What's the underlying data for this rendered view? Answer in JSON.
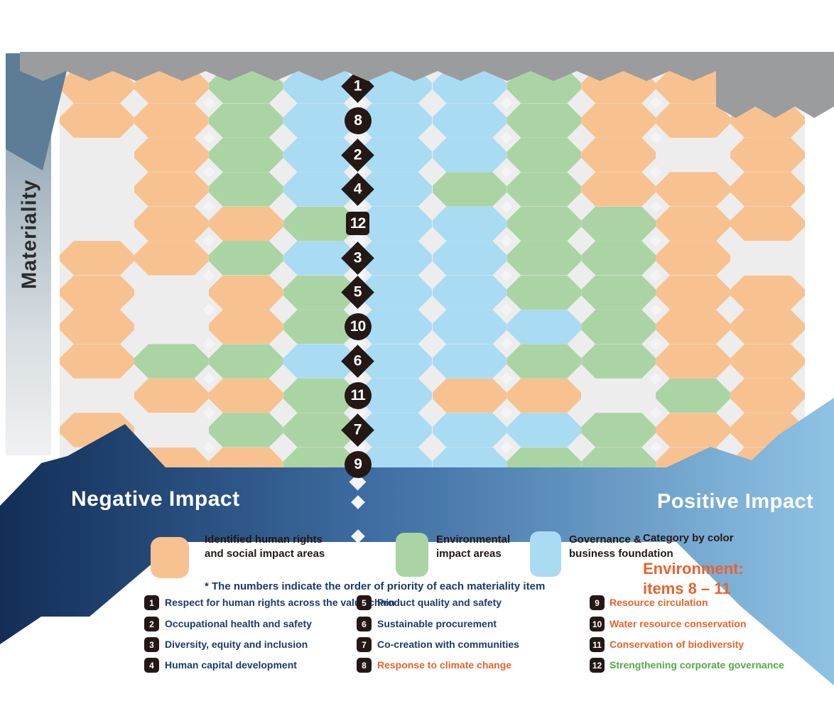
{
  "materiality": {
    "label": "Materiality"
  },
  "impact_axis": {
    "negative": "Negative Impact",
    "positive": "Positive Impact"
  },
  "colors": {
    "header_gray": "#9B9C9E",
    "cell_peach": "#F7C28F",
    "cell_green": "#ABD4A4",
    "cell_blue": "#A9DBF2",
    "cell_empty": "#EDEDEE",
    "marker_black": "#231815",
    "navy": "#1B3A6B",
    "orange": "#E8632C",
    "green_text": "#53A946",
    "band_dark": "#122E57",
    "band_light": "#8FC3E4",
    "pennant": "#5C7D95"
  },
  "grid": {
    "cols": 10,
    "rows": 12,
    "cell_colors": {
      "P": "#F7C28F",
      "G": "#ABD4A4",
      "B": "#A9DBF2",
      "X": "#EDEDEE"
    },
    "rows_pattern": [
      "PPGBBBGPPX",
      "PPGBBBGPPP",
      "XPGBBBGPXP",
      "XPGBBGGPPP",
      "XPPGBBGGPP",
      "PPGBBBGGPX",
      "PXPGBBGGPP",
      "PXPGBBBGPP",
      "PGGBBBGGPP",
      "XPPGBPPXGP",
      "PXGGBBBGPP",
      "XPPGBBGGPP"
    ]
  },
  "axis_markers": [
    {
      "label": "1",
      "shape": "diamond"
    },
    {
      "label": "8",
      "shape": "circle"
    },
    {
      "label": "2",
      "shape": "diamond"
    },
    {
      "label": "4",
      "shape": "diamond"
    },
    {
      "label": "12",
      "shape": "square"
    },
    {
      "label": "3",
      "shape": "diamond"
    },
    {
      "label": "5",
      "shape": "diamond"
    },
    {
      "label": "10",
      "shape": "circle"
    },
    {
      "label": "6",
      "shape": "diamond"
    },
    {
      "label": "11",
      "shape": "circle"
    },
    {
      "label": "7",
      "shape": "diamond"
    },
    {
      "label": "9",
      "shape": "circle"
    }
  ],
  "legend": {
    "items": [
      {
        "swatch": "#F7C28F",
        "line1": "Identified human rights",
        "line2": "and social impact areas"
      },
      {
        "swatch": "#ABD4A4",
        "line1": "Environmental",
        "line2": "impact areas"
      },
      {
        "swatch": "#A9DBF2",
        "line1": "Governance &",
        "line2": "business foundation"
      }
    ],
    "note": "* The numbers indicate the order of priority of each materiality item",
    "side_caption": "Category by color",
    "side_highlight_line1": "Environment:",
    "side_highlight_line2": "items 8 – 11"
  },
  "list": {
    "columns": [
      {
        "items": [
          {
            "n": "1",
            "label": "Respect for human rights across the value chain",
            "color": "#1B3A6B"
          },
          {
            "n": "2",
            "label": "Occupational health and safety",
            "color": "#1B3A6B"
          },
          {
            "n": "3",
            "label": "Diversity, equity and inclusion",
            "color": "#1B3A6B"
          },
          {
            "n": "4",
            "label": "Human capital development",
            "color": "#1B3A6B"
          }
        ]
      },
      {
        "items": [
          {
            "n": "5",
            "label": "Product quality and safety",
            "color": "#1B3A6B"
          },
          {
            "n": "6",
            "label": "Sustainable procurement",
            "color": "#1B3A6B"
          },
          {
            "n": "7",
            "label": "Co-creation with communities",
            "color": "#1B3A6B"
          },
          {
            "n": "8",
            "label": "Response to climate change",
            "color": "#E8632C"
          }
        ]
      },
      {
        "items": [
          {
            "n": "9",
            "label": "Resource circulation",
            "color": "#E8632C"
          },
          {
            "n": "10",
            "label": "Water resource conservation",
            "color": "#E8632C"
          },
          {
            "n": "11",
            "label": "Conservation of biodiversity",
            "color": "#E8632C"
          },
          {
            "n": "12",
            "label": "Strengthening corporate governance",
            "color": "#53A946"
          }
        ]
      }
    ]
  }
}
